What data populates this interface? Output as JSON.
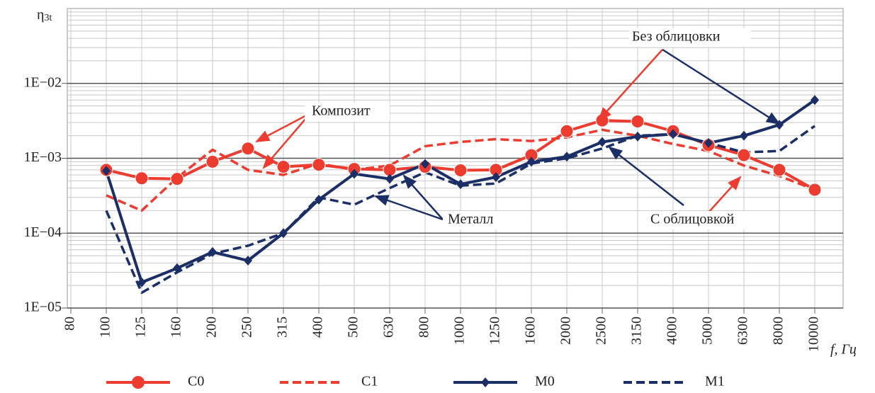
{
  "chart_data": {
    "type": "line",
    "y_label": "η",
    "y_label_sub": "3t",
    "x_label": "f, Гц",
    "categories": [
      "80",
      "100",
      "125",
      "160",
      "200",
      "250",
      "315",
      "400",
      "500",
      "630",
      "800",
      "1000",
      "1250",
      "1600",
      "2000",
      "2500",
      "3150",
      "4000",
      "5000",
      "6300",
      "8000",
      "10000"
    ],
    "log_y": true,
    "grid": true,
    "ylim": [
      1e-05,
      0.1
    ],
    "yticks": [
      {
        "value": 1e-05,
        "label": "1E−05"
      },
      {
        "value": 0.0001,
        "label": "1E−04"
      },
      {
        "value": 0.001,
        "label": "1E−03"
      },
      {
        "value": 0.01,
        "label": "1E−02"
      }
    ],
    "series": [
      {
        "name": "C0",
        "color": "#ec3b2f",
        "marker": "circle",
        "dashed": false,
        "values": [
          null,
          0.0007,
          0.00054,
          0.00053,
          0.0009,
          0.00135,
          0.00077,
          0.00082,
          0.00072,
          0.0007,
          0.00077,
          0.00069,
          0.0007,
          0.0011,
          0.0023,
          0.0032,
          0.0031,
          0.0023,
          0.0015,
          0.0011,
          0.0007,
          0.00038
        ]
      },
      {
        "name": "C1",
        "color": "#ec3b2f",
        "marker": null,
        "dashed": true,
        "values": [
          null,
          0.00032,
          0.0002,
          0.00055,
          0.0013,
          0.0007,
          0.0006,
          0.00085,
          0.0007,
          0.0008,
          0.00145,
          0.00165,
          0.0018,
          0.0017,
          0.0019,
          0.0024,
          0.002,
          0.00155,
          0.00125,
          0.0008,
          0.00058,
          0.00038
        ]
      },
      {
        "name": "M0",
        "color": "#1b2f66",
        "marker": "diamond",
        "dashed": false,
        "values": [
          null,
          0.00068,
          2.2e-05,
          3.4e-05,
          5.6e-05,
          4.3e-05,
          0.0001,
          0.00028,
          0.00062,
          0.00053,
          0.00084,
          0.00045,
          0.00056,
          0.0009,
          0.00105,
          0.00165,
          0.00195,
          0.0021,
          0.0016,
          0.002,
          0.0028,
          0.006
        ]
      },
      {
        "name": "M1",
        "color": "#1b2f66",
        "marker": null,
        "dashed": true,
        "values": [
          null,
          0.0002,
          1.6e-05,
          3e-05,
          5.3e-05,
          6.8e-05,
          0.0001,
          0.0003,
          0.00024,
          0.0004,
          0.00065,
          0.00043,
          0.00046,
          0.00085,
          0.001,
          0.00135,
          0.002,
          0.0021,
          0.0016,
          0.0012,
          0.00125,
          0.0027
        ]
      }
    ],
    "annotations": [
      {
        "text": "Композит",
        "color": "#ec3b2f"
      },
      {
        "text": "Металл",
        "color": "#2a2a8a"
      },
      {
        "text": "Без облицовки",
        "color": "#2a2a8a"
      },
      {
        "text": "С облицовкой",
        "color": "#2a2a8a"
      }
    ]
  }
}
